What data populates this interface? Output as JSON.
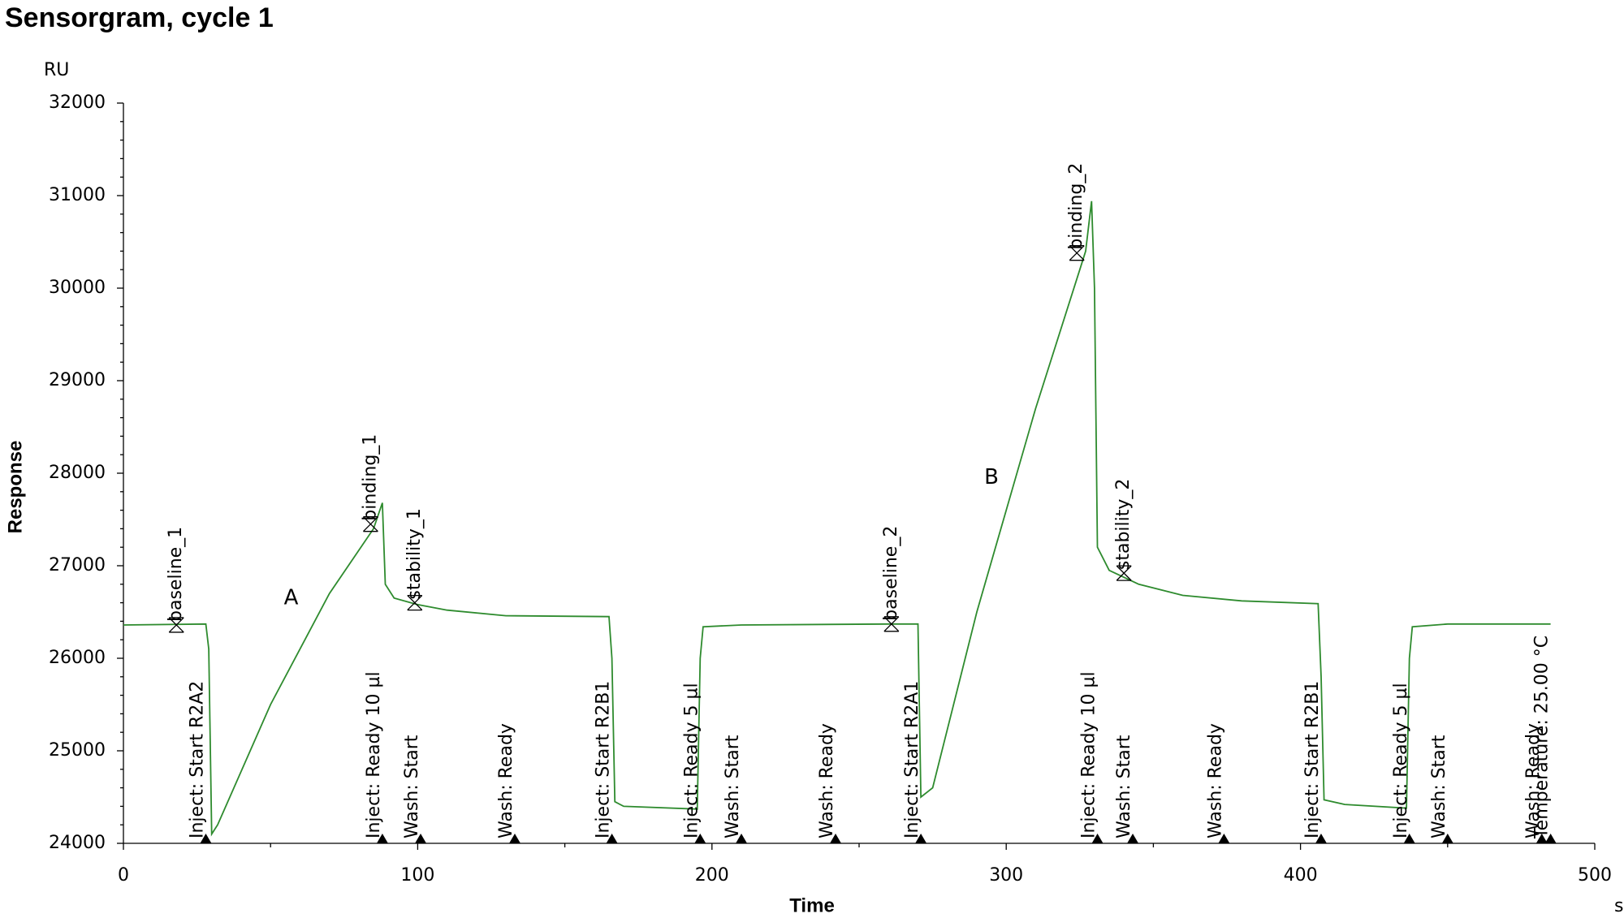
{
  "chart_data": {
    "type": "line",
    "title": "Sensorgram, cycle 1",
    "y_label": "Response",
    "y_unit": "RU",
    "x_label": "Time",
    "x_unit": "s",
    "xlim": [
      0,
      500
    ],
    "xticks": [
      0,
      100,
      200,
      300,
      400,
      500
    ],
    "ylim": [
      24000,
      32000
    ],
    "yticks": [
      24000,
      25000,
      26000,
      27000,
      28000,
      29000,
      30000,
      31000,
      32000
    ],
    "color": "#2e8b2e",
    "x": [
      0,
      28,
      29,
      30,
      32,
      50,
      70,
      85,
      88,
      89,
      92,
      100,
      110,
      130,
      165,
      166,
      167,
      170,
      195,
      196,
      197,
      210,
      260,
      270,
      271,
      275,
      290,
      310,
      325,
      327,
      329,
      330,
      331,
      335,
      345,
      360,
      380,
      406,
      407,
      408,
      415,
      436,
      437,
      438,
      450,
      485
    ],
    "values": [
      26360,
      26370,
      26100,
      24100,
      24200,
      25500,
      26700,
      27400,
      27680,
      26800,
      26650,
      26580,
      26520,
      26460,
      26450,
      26000,
      24450,
      24400,
      24370,
      26000,
      26340,
      26360,
      26370,
      26370,
      24500,
      24600,
      26500,
      28700,
      30200,
      30400,
      30940,
      30000,
      27200,
      26950,
      26800,
      26680,
      26620,
      26590,
      25800,
      24470,
      24420,
      24380,
      26000,
      26340,
      26370,
      26370
    ],
    "events": [
      {
        "x": 28,
        "label": "Inject: Start R2A2"
      },
      {
        "x": 88,
        "label": "Inject: Ready 10 µl"
      },
      {
        "x": 101,
        "label": "Wash: Start"
      },
      {
        "x": 133,
        "label": "Wash: Ready"
      },
      {
        "x": 166,
        "label": "Inject: Start R2B1"
      },
      {
        "x": 196,
        "label": "Inject: Ready 5 µl"
      },
      {
        "x": 210,
        "label": "Wash: Start"
      },
      {
        "x": 242,
        "label": "Wash: Ready"
      },
      {
        "x": 271,
        "label": "Inject: Start R2A1"
      },
      {
        "x": 331,
        "label": "Inject: Ready 10 µl"
      },
      {
        "x": 343,
        "label": "Wash: Start"
      },
      {
        "x": 374,
        "label": "Wash: Ready"
      },
      {
        "x": 407,
        "label": "Inject: Start R2B1"
      },
      {
        "x": 437,
        "label": "Inject: Ready 5 µl"
      },
      {
        "x": 450,
        "label": "Wash: Start"
      },
      {
        "x": 482,
        "label": "Wash: Ready"
      },
      {
        "x": 485,
        "label": "Temperature: 25.00 °C"
      }
    ],
    "report_points": [
      {
        "x": 18,
        "y": 26360,
        "label": "baseline_1"
      },
      {
        "x": 84,
        "y": 27450,
        "label": "binding_1"
      },
      {
        "x": 99,
        "y": 26600,
        "label": "stability_1"
      },
      {
        "x": 261,
        "y": 26370,
        "label": "baseline_2"
      },
      {
        "x": 324,
        "y": 30380,
        "label": "binding_2"
      },
      {
        "x": 340,
        "y": 26920,
        "label": "stability_2"
      }
    ],
    "annotations": [
      {
        "x": 57,
        "y": 26650,
        "text": "A"
      },
      {
        "x": 295,
        "y": 27950,
        "text": "B"
      }
    ]
  }
}
